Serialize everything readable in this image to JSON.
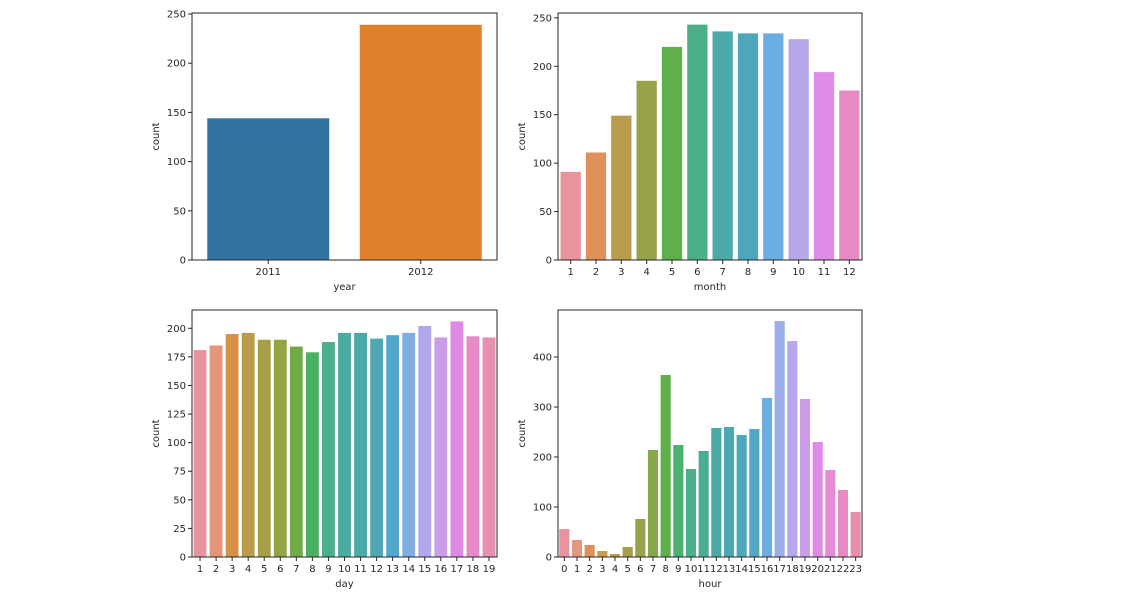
{
  "chart_data": [
    {
      "type": "bar",
      "xlabel": "year",
      "ylabel": "count",
      "categories": [
        "2011",
        "2012"
      ],
      "values": [
        144,
        239
      ],
      "colors": [
        "#3274a1",
        "#e1812c"
      ],
      "ylim": [
        0,
        251
      ],
      "yticks": [
        0,
        50,
        100,
        150,
        200,
        250
      ],
      "grid": false
    },
    {
      "type": "bar",
      "xlabel": "month",
      "ylabel": "count",
      "categories": [
        "1",
        "2",
        "3",
        "4",
        "5",
        "6",
        "7",
        "8",
        "9",
        "10",
        "11",
        "12"
      ],
      "values": [
        91,
        111,
        149,
        185,
        220,
        243,
        236,
        234,
        234,
        228,
        194,
        175
      ],
      "colors": [
        "#e8939e",
        "#e0915a",
        "#b89c4c",
        "#98a24a",
        "#5fb04b",
        "#4bb087",
        "#4aaaa8",
        "#4ea8bd",
        "#6aade2",
        "#b6a8ea",
        "#de8ce8",
        "#e78bc3"
      ],
      "ylim": [
        0,
        255
      ],
      "yticks": [
        0,
        50,
        100,
        150,
        200,
        250
      ],
      "grid": false
    },
    {
      "type": "bar",
      "xlabel": "day",
      "ylabel": "count",
      "categories": [
        "1",
        "2",
        "3",
        "4",
        "5",
        "6",
        "7",
        "8",
        "9",
        "10",
        "11",
        "12",
        "13",
        "14",
        "15",
        "16",
        "17",
        "18",
        "19"
      ],
      "values": [
        181,
        185,
        195,
        196,
        190,
        190,
        184,
        179,
        188,
        196,
        196,
        191,
        194,
        196,
        202,
        192,
        206,
        193,
        192
      ],
      "colors": [
        "#e8939e",
        "#e5957a",
        "#d69348",
        "#b89c4c",
        "#a5a045",
        "#93a444",
        "#70ab48",
        "#4bb063",
        "#4bae8c",
        "#4aab9f",
        "#4aaaa8",
        "#4da8b3",
        "#52a8c9",
        "#80aee0",
        "#b0a8ea",
        "#c99ee6",
        "#e08ae5",
        "#e78bc8",
        "#e88fb4"
      ],
      "ylim": [
        0,
        216
      ],
      "yticks": [
        0,
        25,
        50,
        75,
        100,
        125,
        150,
        175,
        200
      ],
      "grid": false
    },
    {
      "type": "bar",
      "xlabel": "hour",
      "ylabel": "count",
      "categories": [
        "0",
        "1",
        "2",
        "3",
        "4",
        "5",
        "6",
        "7",
        "8",
        "9",
        "10",
        "11",
        "12",
        "13",
        "14",
        "15",
        "16",
        "17",
        "18",
        "19",
        "20",
        "21",
        "22",
        "23"
      ],
      "values": [
        56,
        34,
        24,
        12,
        6,
        20,
        76,
        214,
        364,
        224,
        176,
        212,
        258,
        260,
        244,
        256,
        318,
        472,
        432,
        316,
        230,
        174,
        134,
        90
      ],
      "colors": [
        "#e8939e",
        "#e5967f",
        "#e0915a",
        "#c99b4c",
        "#b89c4c",
        "#a99f47",
        "#98a24a",
        "#86a848",
        "#5fb04b",
        "#4bb071",
        "#4bb087",
        "#4aae96",
        "#4aaaa8",
        "#4ba9b0",
        "#4da8b9",
        "#53a8ca",
        "#6aade2",
        "#9caee8",
        "#b6a8ea",
        "#c99ee6",
        "#de8ce8",
        "#e68bd6",
        "#e78bc3",
        "#e88fb0"
      ],
      "ylim": [
        0,
        494
      ],
      "yticks": [
        0,
        100,
        200,
        300,
        400
      ],
      "grid": false
    }
  ]
}
